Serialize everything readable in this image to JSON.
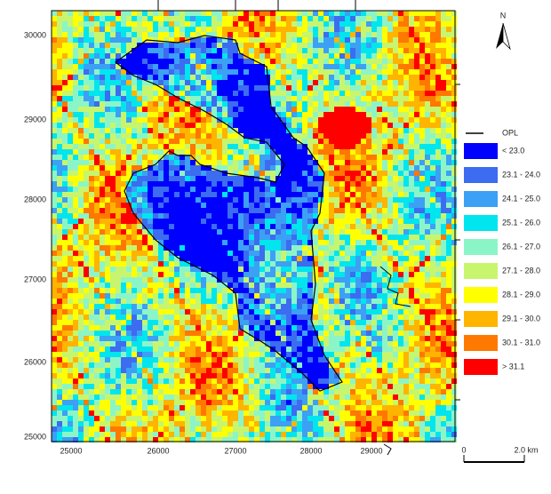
{
  "north": "N",
  "axes": {
    "left_labels": [
      "30000",
      "29000",
      "28000",
      "27000",
      "26000",
      "25000"
    ],
    "bottom_labels": [
      "25000",
      "26000",
      "27000",
      "28000",
      "29000"
    ]
  },
  "legend": {
    "boundary_label": "OPL",
    "classes": [
      {
        "label": "< 23.0",
        "color": "#0000ff"
      },
      {
        "label": "23.1 - 24.0",
        "color": "#3c6cf0"
      },
      {
        "label": "24.1 - 25.0",
        "color": "#3ca0f5"
      },
      {
        "label": "25.1 - 26.0",
        "color": "#00e5ee"
      },
      {
        "label": "26.1 - 27.0",
        "color": "#8cf5c8"
      },
      {
        "label": "27.1 - 28.0",
        "color": "#c8f56e"
      },
      {
        "label": "28.1 - 29.0",
        "color": "#ffff00"
      },
      {
        "label": "29.1 - 30.0",
        "color": "#ffb400"
      },
      {
        "label": "30.1 - 31.0",
        "color": "#ff7800"
      },
      {
        "label": "> 31.1",
        "color": "#ff0000"
      }
    ]
  },
  "scale": {
    "start": "0",
    "end": "2.0 km"
  }
}
